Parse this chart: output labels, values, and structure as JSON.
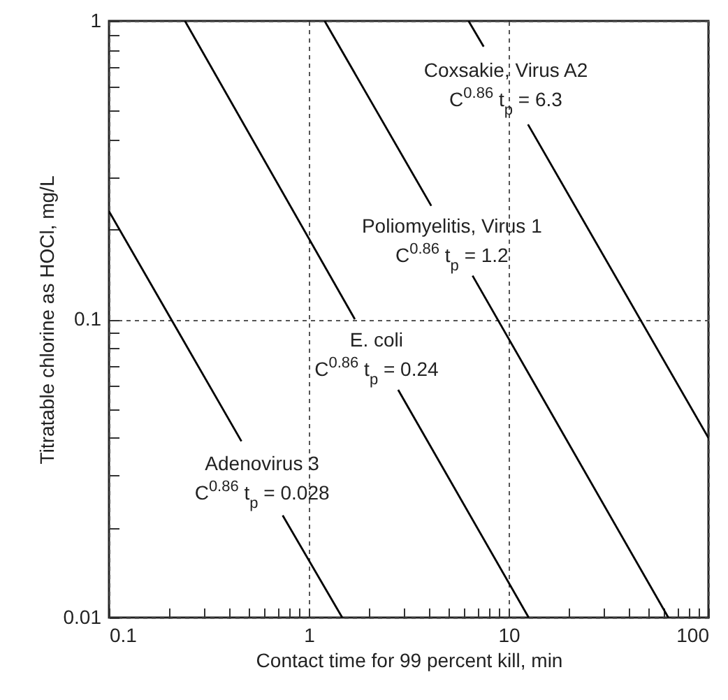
{
  "chart_data": {
    "type": "line",
    "xlabel": "Contact time for 99 percent kill, min",
    "ylabel": "Titratable chlorine as HOCl, mg/L",
    "log": "xy",
    "grid": true,
    "marker": "none",
    "line_style": "solid",
    "xlim": [
      0.1,
      100
    ],
    "ylim": [
      0.01,
      1
    ],
    "xticks": [
      0.1,
      {
        "value": 0.2,
        "label": null
      },
      {
        "value": 0.3,
        "label": null
      },
      {
        "value": 0.4,
        "label": null
      },
      {
        "value": 0.5,
        "label": null
      },
      {
        "value": 0.6,
        "label": null
      },
      {
        "value": 0.7,
        "label": null
      },
      {
        "value": 0.8,
        "label": null
      },
      {
        "value": 0.9,
        "label": null
      },
      1,
      {
        "value": 2,
        "label": null
      },
      {
        "value": 3,
        "label": null
      },
      {
        "value": 4,
        "label": null
      },
      {
        "value": 5,
        "label": null
      },
      {
        "value": 6,
        "label": null
      },
      {
        "value": 7,
        "label": null
      },
      {
        "value": 8,
        "label": null
      },
      {
        "value": 9,
        "label": null
      },
      10,
      {
        "value": 20,
        "label": null
      },
      {
        "value": 30,
        "label": null
      },
      {
        "value": 40,
        "label": null
      },
      {
        "value": 50,
        "label": null
      },
      {
        "value": 60,
        "label": null
      },
      {
        "value": 70,
        "label": null
      },
      {
        "value": 80,
        "label": null
      },
      {
        "value": 90,
        "label": null
      },
      100
    ],
    "yticks": [
      0.01,
      {
        "value": 0.02,
        "label": null
      },
      {
        "value": 0.03,
        "label": null
      },
      {
        "value": 0.04,
        "label": null
      },
      {
        "value": 0.05,
        "label": null
      },
      {
        "value": 0.06,
        "label": null
      },
      {
        "value": 0.07,
        "label": null
      },
      {
        "value": 0.08,
        "label": null
      },
      {
        "value": 0.09,
        "label": null
      },
      0.1,
      {
        "value": 0.2,
        "label": null
      },
      {
        "value": 0.3,
        "label": null
      },
      {
        "value": 0.4,
        "label": null
      },
      {
        "value": 0.5,
        "label": null
      },
      {
        "value": 0.6,
        "label": null
      },
      {
        "value": 0.7,
        "label": null
      },
      {
        "value": 0.8,
        "label": null
      },
      {
        "value": 0.9,
        "label": null
      },
      1
    ],
    "series": [
      {
        "color": "#000000",
        "x": [
          0.1,
          0.46
        ],
        "values": [
          0.23,
          0.039
        ]
      },
      {
        "color": "#000000",
        "x": [
          0.74,
          1.47
        ],
        "values": [
          0.022,
          0.01
        ]
      },
      {
        "color": "#000000",
        "x": [
          0.24,
          1.7
        ],
        "values": [
          1,
          0.1
        ]
      },
      {
        "color": "#000000",
        "x": [
          2.8,
          12.6
        ],
        "values": [
          0.058,
          0.01
        ]
      },
      {
        "color": "#000000",
        "x": [
          1.2,
          4.1
        ],
        "values": [
          1,
          0.24
        ]
      },
      {
        "color": "#000000",
        "x": [
          6.6,
          63
        ],
        "values": [
          0.14,
          0.01
        ]
      },
      {
        "color": "#000000",
        "x": [
          6.3,
          7.5
        ],
        "values": [
          1,
          0.82
        ]
      },
      {
        "color": "#000000",
        "x": [
          12.5,
          100
        ],
        "values": [
          0.45,
          0.04
        ]
      }
    ],
    "annotations": [
      "Adenovirus 3",
      "C$^{0.86}$ t$_{p}$ = 0.028",
      "E. coli",
      "C$^{0.86}$ t$_{p}$ = 0.24",
      "Poliomyelitis, Virus 1",
      "C$^{0.86}$ t$_{p}$ = 1.2",
      "Coxsakie, Virus A2",
      "C$^{0.86}$ t$_{p}$ = 6.3"
    ]
  }
}
